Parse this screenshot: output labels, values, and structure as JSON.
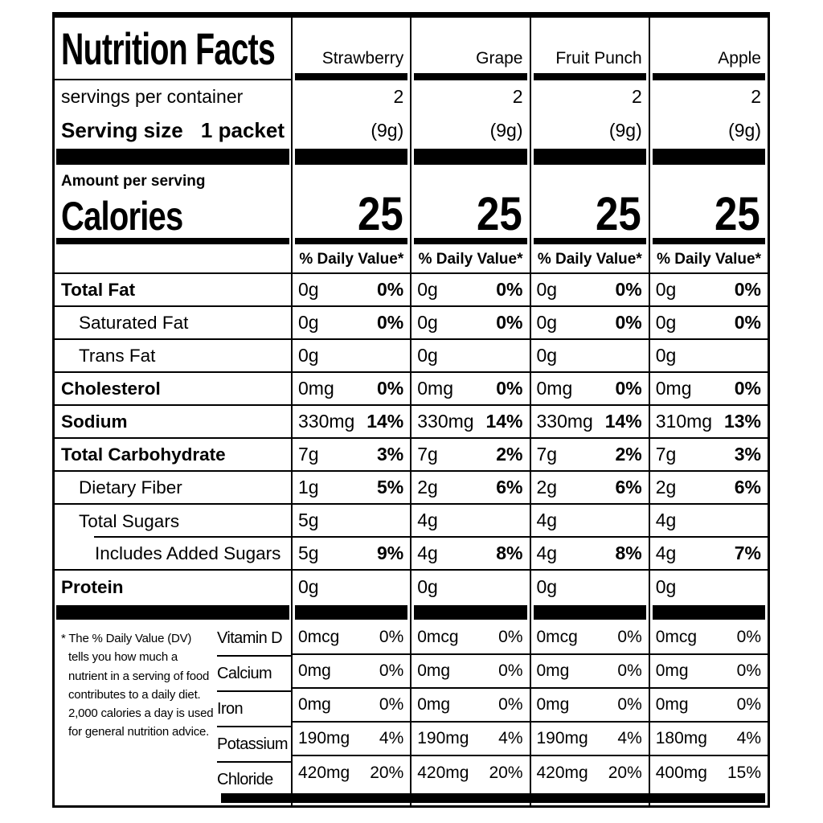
{
  "header": {
    "title": "Nutrition Facts",
    "servings_label": "servings per container",
    "serving_size_label": "Serving size",
    "serving_size_value": "1 packet",
    "amount_per_serving": "Amount per serving",
    "calories_label": "Calories",
    "daily_value_header": "% Daily Value*"
  },
  "columns": [
    {
      "name": "Strawberry",
      "servings": "2",
      "size": "(9g)",
      "calories": "25"
    },
    {
      "name": "Grape",
      "servings": "2",
      "size": "(9g)",
      "calories": "25"
    },
    {
      "name": "Fruit Punch",
      "servings": "2",
      "size": "(9g)",
      "calories": "25"
    },
    {
      "name": "Apple",
      "servings": "2",
      "size": "(9g)",
      "calories": "25"
    }
  ],
  "nutrients": [
    {
      "label": "Total Fat",
      "v": [
        {
          "a": "0g",
          "p": "0%"
        },
        {
          "a": "0g",
          "p": "0%"
        },
        {
          "a": "0g",
          "p": "0%"
        },
        {
          "a": "0g",
          "p": "0%"
        }
      ]
    },
    {
      "label": "Saturated Fat",
      "v": [
        {
          "a": "0g",
          "p": "0%"
        },
        {
          "a": "0g",
          "p": "0%"
        },
        {
          "a": "0g",
          "p": "0%"
        },
        {
          "a": "0g",
          "p": "0%"
        }
      ]
    },
    {
      "label": "Trans Fat",
      "v": [
        {
          "a": "0g",
          "p": ""
        },
        {
          "a": "0g",
          "p": ""
        },
        {
          "a": "0g",
          "p": ""
        },
        {
          "a": "0g",
          "p": ""
        }
      ]
    },
    {
      "label": "Cholesterol",
      "v": [
        {
          "a": "0mg",
          "p": "0%"
        },
        {
          "a": "0mg",
          "p": "0%"
        },
        {
          "a": "0mg",
          "p": "0%"
        },
        {
          "a": "0mg",
          "p": "0%"
        }
      ]
    },
    {
      "label": "Sodium",
      "v": [
        {
          "a": "330mg",
          "p": "14%"
        },
        {
          "a": "330mg",
          "p": "14%"
        },
        {
          "a": "330mg",
          "p": "14%"
        },
        {
          "a": "310mg",
          "p": "13%"
        }
      ]
    },
    {
      "label": "Total Carbohydrate",
      "v": [
        {
          "a": "7g",
          "p": "3%"
        },
        {
          "a": "7g",
          "p": "2%"
        },
        {
          "a": "7g",
          "p": "2%"
        },
        {
          "a": "7g",
          "p": "3%"
        }
      ]
    },
    {
      "label": "Dietary Fiber",
      "v": [
        {
          "a": "1g",
          "p": "5%"
        },
        {
          "a": "2g",
          "p": "6%"
        },
        {
          "a": "2g",
          "p": "6%"
        },
        {
          "a": "2g",
          "p": "6%"
        }
      ]
    },
    {
      "label": "Total Sugars",
      "v": [
        {
          "a": "5g",
          "p": ""
        },
        {
          "a": "4g",
          "p": ""
        },
        {
          "a": "4g",
          "p": ""
        },
        {
          "a": "4g",
          "p": ""
        }
      ]
    },
    {
      "label": "Includes Added Sugars",
      "v": [
        {
          "a": "5g",
          "p": "9%"
        },
        {
          "a": "4g",
          "p": "8%"
        },
        {
          "a": "4g",
          "p": "8%"
        },
        {
          "a": "4g",
          "p": "7%"
        }
      ]
    },
    {
      "label": "Protein",
      "v": [
        {
          "a": "0g",
          "p": ""
        },
        {
          "a": "0g",
          "p": ""
        },
        {
          "a": "0g",
          "p": ""
        },
        {
          "a": "0g",
          "p": ""
        }
      ]
    }
  ],
  "vitamins": [
    {
      "label": "Vitamin D",
      "v": [
        {
          "a": "0mcg",
          "p": "0%"
        },
        {
          "a": "0mcg",
          "p": "0%"
        },
        {
          "a": "0mcg",
          "p": "0%"
        },
        {
          "a": "0mcg",
          "p": "0%"
        }
      ]
    },
    {
      "label": "Calcium",
      "v": [
        {
          "a": "0mg",
          "p": "0%"
        },
        {
          "a": "0mg",
          "p": "0%"
        },
        {
          "a": "0mg",
          "p": "0%"
        },
        {
          "a": "0mg",
          "p": "0%"
        }
      ]
    },
    {
      "label": "Iron",
      "v": [
        {
          "a": "0mg",
          "p": "0%"
        },
        {
          "a": "0mg",
          "p": "0%"
        },
        {
          "a": "0mg",
          "p": "0%"
        },
        {
          "a": "0mg",
          "p": "0%"
        }
      ]
    },
    {
      "label": "Potassium",
      "v": [
        {
          "a": "190mg",
          "p": "4%"
        },
        {
          "a": "190mg",
          "p": "4%"
        },
        {
          "a": "190mg",
          "p": "4%"
        },
        {
          "a": "180mg",
          "p": "4%"
        }
      ]
    },
    {
      "label": "Chloride",
      "v": [
        {
          "a": "420mg",
          "p": "20%"
        },
        {
          "a": "420mg",
          "p": "20%"
        },
        {
          "a": "420mg",
          "p": "20%"
        },
        {
          "a": "400mg",
          "p": "15%"
        }
      ]
    }
  ],
  "footnote": {
    "marker": "*",
    "text": "The % Daily Value (DV) tells you how much a nutrient in a serving of food contributes to a daily diet. 2,000 calories a day is used for general nutrition advice."
  },
  "colors": {
    "ink": "#000000",
    "paper": "#ffffff"
  }
}
